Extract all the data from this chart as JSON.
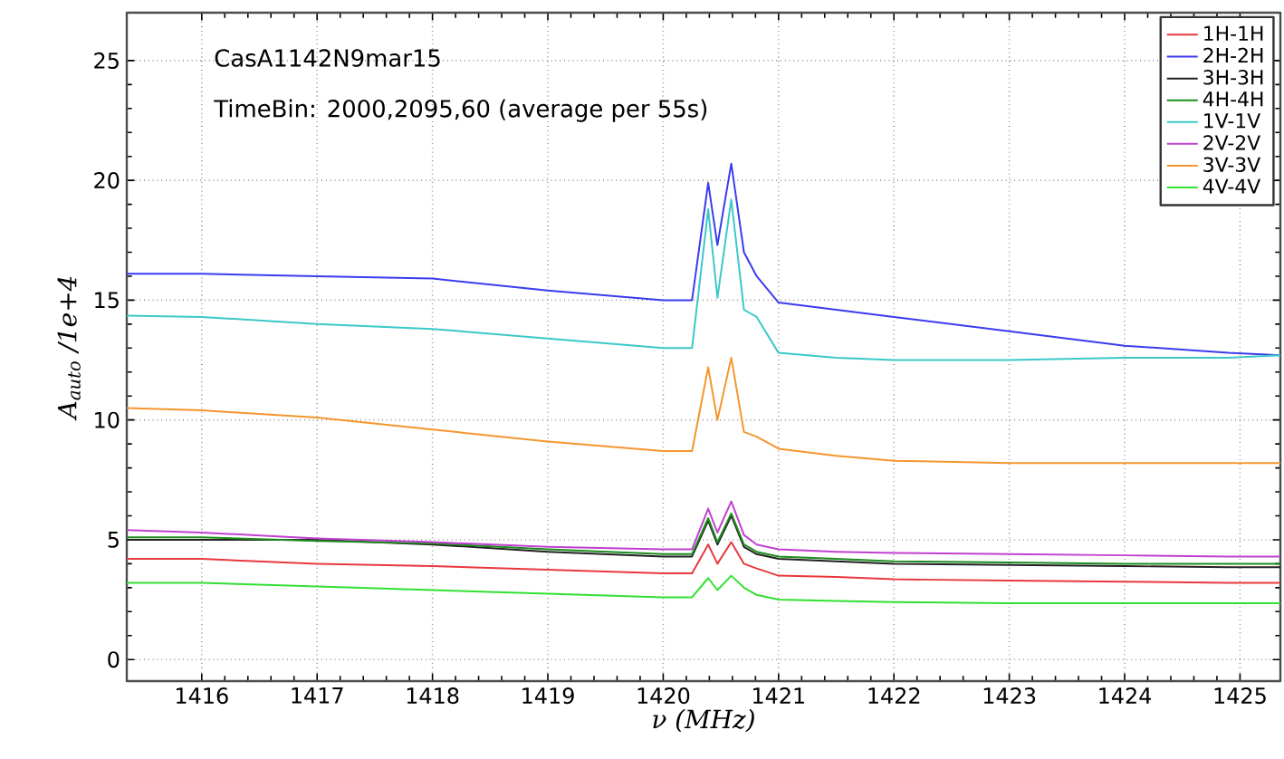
{
  "chart_data": {
    "type": "line",
    "xlabel": "ν (MHz)",
    "ylabel": "A$_{auto}$ /1e+4",
    "annotations": [
      "CasA1142N9mar15",
      "TimeBin: 2000,2095,60 (average per 55s)"
    ],
    "x": [
      1415.35,
      1416,
      1417,
      1418,
      1419,
      1420,
      1420.25,
      1420.39,
      1420.47,
      1420.59,
      1420.7,
      1420.81,
      1421,
      1421.5,
      1422,
      1423,
      1424,
      1424.9,
      1425.35
    ],
    "xlim": [
      1415.35,
      1425.35
    ],
    "ylim": [
      -0.9,
      27
    ],
    "xticks": [
      1416,
      1417,
      1418,
      1419,
      1420,
      1421,
      1422,
      1423,
      1424,
      1425
    ],
    "yticks": [
      0,
      5,
      10,
      15,
      20,
      25
    ],
    "grid": true,
    "legend": "top right",
    "line_style": "solid",
    "marker": "none",
    "series": [
      {
        "name": "1H-1H",
        "color": "#e8383d",
        "values": [
          4.2,
          4.2,
          4.0,
          3.9,
          3.75,
          3.6,
          3.6,
          4.8,
          4.0,
          4.9,
          4.0,
          3.8,
          3.5,
          3.45,
          3.35,
          3.3,
          3.25,
          3.2,
          3.2
        ]
      },
      {
        "name": "2H-2H",
        "color": "#3b3bf0",
        "values": [
          16.1,
          16.1,
          16.0,
          15.9,
          15.4,
          15.0,
          15.0,
          19.9,
          17.3,
          20.7,
          17.0,
          16.0,
          14.9,
          14.6,
          14.3,
          13.7,
          13.1,
          12.8,
          12.7
        ]
      },
      {
        "name": "3H-3H",
        "color": "#222222",
        "values": [
          5.0,
          5.0,
          5.0,
          4.8,
          4.5,
          4.3,
          4.3,
          5.8,
          4.8,
          6.0,
          4.7,
          4.4,
          4.2,
          4.1,
          4.0,
          3.95,
          3.9,
          3.85,
          3.85
        ]
      },
      {
        "name": "4H-4H",
        "color": "#1e8c1e",
        "values": [
          5.1,
          5.1,
          4.95,
          4.85,
          4.6,
          4.4,
          4.4,
          5.9,
          4.9,
          6.1,
          4.8,
          4.5,
          4.3,
          4.2,
          4.1,
          4.05,
          4.0,
          4.0,
          4.0
        ]
      },
      {
        "name": "1V-1V",
        "color": "#3cc8c8",
        "values": [
          14.35,
          14.3,
          14.0,
          13.8,
          13.4,
          13.0,
          13.0,
          18.8,
          15.1,
          19.2,
          14.6,
          14.3,
          12.8,
          12.6,
          12.5,
          12.5,
          12.6,
          12.6,
          12.7
        ]
      },
      {
        "name": "2V-2V",
        "color": "#c040d0",
        "values": [
          5.4,
          5.3,
          5.05,
          4.9,
          4.7,
          4.6,
          4.6,
          6.3,
          5.3,
          6.6,
          5.2,
          4.8,
          4.6,
          4.5,
          4.45,
          4.4,
          4.35,
          4.3,
          4.3
        ]
      },
      {
        "name": "3V-3V",
        "color": "#f5962d",
        "values": [
          10.5,
          10.4,
          10.1,
          9.6,
          9.1,
          8.7,
          8.7,
          12.2,
          10.0,
          12.6,
          9.5,
          9.3,
          8.8,
          8.5,
          8.3,
          8.2,
          8.2,
          8.2,
          8.2
        ]
      },
      {
        "name": "4V-4V",
        "color": "#33e033",
        "values": [
          3.2,
          3.2,
          3.05,
          2.9,
          2.75,
          2.6,
          2.6,
          3.4,
          2.9,
          3.5,
          3.0,
          2.7,
          2.5,
          2.45,
          2.4,
          2.35,
          2.35,
          2.35,
          2.35
        ]
      }
    ]
  }
}
